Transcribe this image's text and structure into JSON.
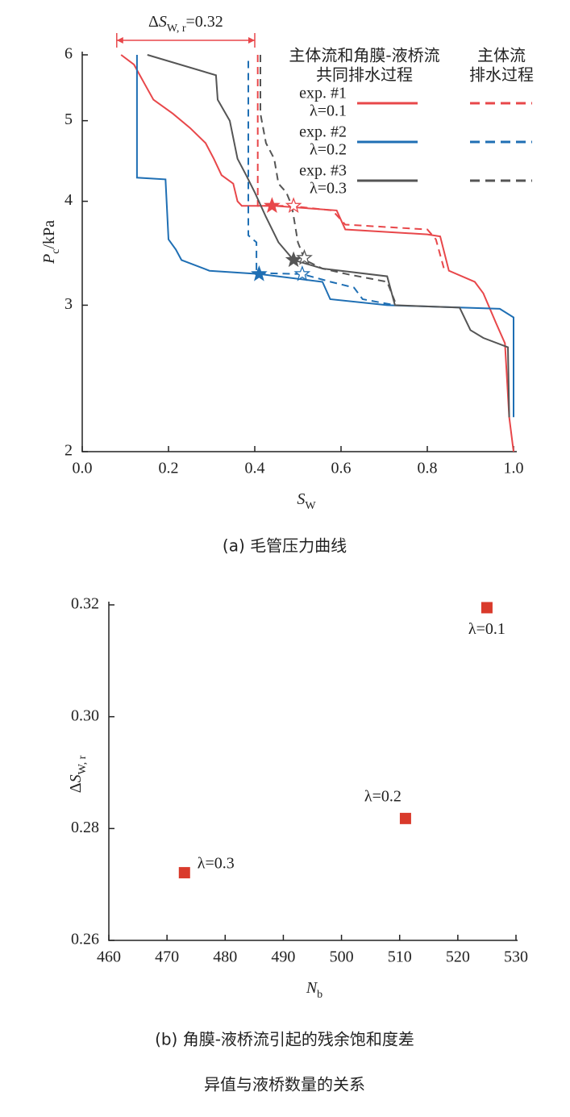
{
  "chart_data": [
    {
      "type": "line",
      "caption": "(a) 毛管压力曲线",
      "xlabel": {
        "main": "S",
        "sub": "W"
      },
      "ylabel": {
        "main": "P",
        "sub": "c",
        "unit": "/kPa"
      },
      "xlim": [
        0,
        1.0
      ],
      "xticks": [
        {
          "value": 0,
          "label": "0.0"
        },
        0.2,
        0.4,
        0.6,
        0.8,
        {
          "value": 1,
          "label": "1.0"
        }
      ],
      "ylim": [
        2,
        6
      ],
      "yticks": [
        2,
        3,
        4,
        5,
        6
      ],
      "ylog": true,
      "annotation": {
        "parts": [
          "Δ",
          "S",
          "W, r",
          "=0.32"
        ],
        "span": [
          0.08,
          0.4
        ]
      },
      "legend_headers": [
        [
          "主体流和角膜-液桥流",
          "共同排水过程"
        ],
        [
          "主体流",
          "排水过程"
        ]
      ],
      "series": [
        {
          "name": [
            "exp. #1",
            "λ=0.1"
          ],
          "color": "#e8474a",
          "lines": [
            {
              "dashed": false,
              "star": [
                0.44,
                3.95
              ],
              "x": [
                0.09,
                0.12,
                0.146,
                0.165,
                0.21,
                0.25,
                0.286,
                0.305,
                0.323,
                0.35,
                0.36,
                0.37,
                0.445,
                0.59,
                0.61,
                0.8,
                0.83,
                0.85,
                0.91,
                0.93,
                0.96,
                0.98,
                0.99,
                1.0
              ],
              "y": [
                6,
                5.84,
                5.52,
                5.3,
                5.1,
                4.9,
                4.7,
                4.5,
                4.3,
                4.2,
                4.0,
                3.95,
                3.95,
                3.9,
                3.7,
                3.65,
                3.63,
                3.3,
                3.2,
                3.1,
                2.85,
                2.7,
                2.2,
                2.0
              ]
            },
            {
              "dashed": true,
              "star": [
                0.49,
                3.95
              ],
              "x": [
                0.407,
                0.407,
                0.48,
                0.58,
                0.61,
                0.8,
                0.82,
                0.84
              ],
              "y": [
                6,
                3.95,
                3.95,
                3.9,
                3.75,
                3.7,
                3.6,
                3.3
              ]
            }
          ]
        },
        {
          "name": [
            "exp. #2",
            "λ=0.2"
          ],
          "color": "#1f6fb4",
          "lines": [
            {
              "dashed": false,
              "star": [
                0.41,
                3.27
              ],
              "x": [
                0.127,
                0.127,
                0.193,
                0.2,
                0.217,
                0.23,
                0.295,
                0.41,
                0.557,
                0.575,
                0.707,
                0.968,
                1.0,
                1.0
              ],
              "y": [
                6,
                4.27,
                4.25,
                3.6,
                3.5,
                3.4,
                3.3,
                3.27,
                3.2,
                3.05,
                3.0,
                2.97,
                2.9,
                2.2
              ]
            },
            {
              "dashed": true,
              "star": [
                0.51,
                3.27
              ],
              "x": [
                0.385,
                0.385,
                0.404,
                0.404,
                0.51,
                0.576,
                0.63,
                0.65,
                0.725
              ],
              "y": [
                5.9,
                3.64,
                3.57,
                3.28,
                3.27,
                3.2,
                3.15,
                3.05,
                3.0
              ]
            }
          ]
        },
        {
          "name": [
            "exp. #3",
            "λ=0.3"
          ],
          "color": "#555555",
          "lines": [
            {
              "dashed": false,
              "star": [
                0.49,
                3.4
              ],
              "x": [
                0.151,
                0.31,
                0.314,
                0.342,
                0.36,
                0.38,
                0.4,
                0.426,
                0.455,
                0.49,
                0.557,
                0.707,
                0.725,
                0.875,
                0.9,
                0.93,
                0.987,
                0.99
              ],
              "y": [
                6,
                5.67,
                5.3,
                5.0,
                4.5,
                4.3,
                4.1,
                3.83,
                3.57,
                3.4,
                3.32,
                3.25,
                3.0,
                2.98,
                2.8,
                2.74,
                2.67,
                2.2
              ]
            },
            {
              "dashed": true,
              "star": [
                0.515,
                3.42
              ],
              "x": [
                0.413,
                0.413,
                0.426,
                0.445,
                0.455,
                0.473,
                0.486,
                0.5,
                0.516,
                0.557,
                0.613,
                0.707,
                0.725
              ],
              "y": [
                6,
                5.1,
                4.7,
                4.5,
                4.2,
                4.1,
                3.95,
                3.57,
                3.4,
                3.32,
                3.27,
                3.2,
                3.03
              ]
            }
          ]
        }
      ]
    },
    {
      "type": "scatter",
      "caption": [
        "(b) 角膜-液桥流引起的残余饱和度差",
        "异值与液桥数量的关系"
      ],
      "xlabel": {
        "main": "N",
        "sub": "b"
      },
      "ylabel": {
        "parts": [
          "Δ",
          "S",
          "W, r"
        ]
      },
      "xlim": [
        460,
        530
      ],
      "xticks": [
        460,
        470,
        480,
        490,
        500,
        510,
        520,
        530
      ],
      "ylim": [
        0.26,
        0.32
      ],
      "yticks": [
        0.26,
        0.28,
        {
          "value": 0.3,
          "label": "0.30"
        },
        0.32
      ],
      "color": "#d93a2b",
      "x": [
        525,
        511,
        473
      ],
      "values": [
        0.3195,
        0.2818,
        0.2721
      ],
      "point_labels": [
        "λ=0.1",
        "λ=0.2",
        "λ=0.3"
      ]
    }
  ]
}
